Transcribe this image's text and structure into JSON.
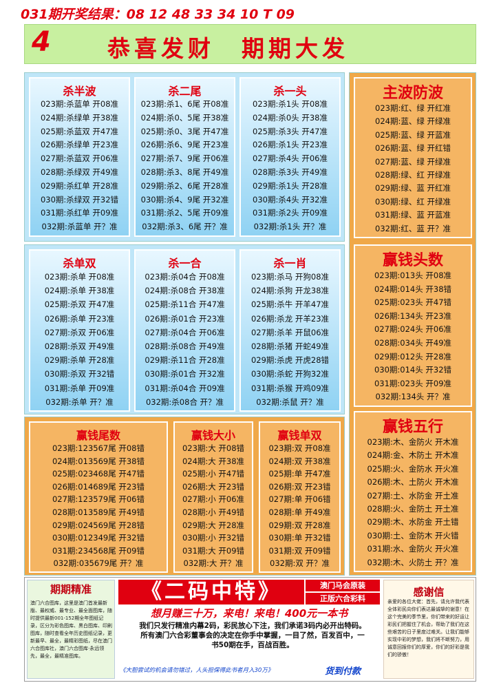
{
  "header": {
    "result": "031期开奖结果：08 12 48 33 34 10 T 09"
  },
  "banner": {
    "number": "4",
    "title": "恭喜发财　期期大发"
  },
  "panels": [
    {
      "title": "杀半波",
      "rows": [
        "023期:杀蓝单 开08准",
        "024期:杀绿单 开38准",
        "025期:杀蓝双 开47准",
        "026期:杀绿单 开23准",
        "027期:杀蓝双 开06准",
        "028期:杀绿双 开49准",
        "029期:杀红单 开28准",
        "030期:杀绿双 开32错",
        "031期:杀红单 开09准",
        "032期:杀蓝单 开？准"
      ]
    },
    {
      "title": "杀二尾",
      "rows": [
        "023期:杀1、6尾 开08准",
        "024期:杀0、5尾 开38准",
        "025期:杀0、3尾 开47准",
        "026期:杀6、9尾 开23准",
        "027期:杀7、9尾 开06准",
        "028期:杀3、8尾 开49准",
        "029期:杀2、6尾 开28准",
        "030期:杀4、9尾 开32准",
        "031期:杀2、5尾 开09准",
        "032期:杀3、6尾 开？准"
      ]
    },
    {
      "title": "杀一头",
      "rows": [
        "023期:杀1头 开08准",
        "024期:杀0头 开38准",
        "025期:杀3头 开47准",
        "026期:杀1头 开23准",
        "027期:杀4头 开06准",
        "028期:杀3头 开49准",
        "029期:杀1头 开28准",
        "030期:杀4头 开32准",
        "031期:杀2头 开09准",
        "032期:杀1头 开？准"
      ]
    },
    {
      "title": "杀单双",
      "rows": [
        "023期:杀单 开08准",
        "024期:杀单 开38准",
        "025期:杀双 开47准",
        "026期:杀单 开23准",
        "027期:杀双 开06准",
        "028期:杀双 开49准",
        "029期:杀单 开28准",
        "030期:杀双 开32错",
        "031期:杀单 开09准",
        "032期:杀单 开？准"
      ]
    },
    {
      "title": "杀一合",
      "rows": [
        "023期:杀04合 开08准",
        "024期:杀08合 开38准",
        "025期:杀11合 开47准",
        "026期:杀01合 开23准",
        "027期:杀04合 开06准",
        "028期:杀08合 开49准",
        "029期:杀11合 开28准",
        "030期:杀01合 开32准",
        "031期:杀04合 开09准",
        "032期:杀08合 开？准"
      ]
    },
    {
      "title": "杀一肖",
      "rows": [
        "023期:杀马 开狗08准",
        "024期:杀狗 开龙38准",
        "025期:杀牛 开羊47准",
        "026期:杀龙 开羊23准",
        "027期:杀羊 开鼠06准",
        "028期:杀猪 开蛇49准",
        "029期:杀虎 开虎28错",
        "030期:杀蛇 开狗32准",
        "031期:杀猴 开鸡09准",
        "032期:杀鼠 开？准"
      ]
    },
    {
      "title": "赢钱尾数",
      "rows": [
        "023期:123567尾 开08错",
        "024期:013569尾 开38错",
        "025期:023468尾 开47错",
        "026期:014689尾 开23错",
        "027期:123579尾 开06错",
        "028期:013589尾 开49错",
        "029期:024569尾 开28错",
        "030期:012349尾 开32错",
        "031期:234568尾 开09错",
        "032期:035679尾 开？准"
      ]
    },
    {
      "title": "赢钱大小",
      "rows": [
        "023期:大 开08错",
        "024期:大 开38准",
        "025期:小 开47错",
        "026期:大 开23错",
        "027期:小 开06准",
        "028期:小 开49错",
        "029期:大 开28准",
        "030期:小 开32错",
        "031期:大 开09错",
        "032期:大 开？准"
      ]
    },
    {
      "title": "赢钱单双",
      "rows": [
        "023期:双 开08准",
        "024期:双 开38准",
        "025期:单 开47准",
        "026期:双 开23错",
        "027期:单 开06错",
        "028期:单 开49准",
        "029期:双 开28准",
        "030期:单 开32错",
        "031期:双 开09错",
        "032期:双 开？准"
      ]
    },
    {
      "title": "主波防波",
      "rows": [
        "023期:红、绿 开红准",
        "024期:蓝、绿 开绿准",
        "025期:蓝、绿 开蓝准",
        "026期:蓝、绿 开红错",
        "027期:蓝、绿 开绿准",
        "028期:绿、红 开绿准",
        "029期:绿、蓝 开红准",
        "030期:绿、红 开绿准",
        "031期:绿、蓝 开蓝准",
        "032期:红、蓝 开？准"
      ]
    },
    {
      "title": "赢钱头数",
      "rows": [
        "023期:013头 开08准",
        "024期:014头 开38错",
        "025期:023头 开47错",
        "026期:134头 开23准",
        "027期:024头 开06准",
        "028期:034头 开49准",
        "029期:012头 开28准",
        "030期:014头 开32错",
        "031期:023头 开09准",
        "032期:134头 开？准"
      ]
    },
    {
      "title": "赢钱五行",
      "rows": [
        "023期:木、金防火 开木准",
        "024期:金、木防土 开木准",
        "025期:火、金防水 开火准",
        "026期:木、土防火 开木准",
        "027期:土、水防金 开土准",
        "028期:火、金防土 开土准",
        "029期:木、水防金 开土错",
        "030期:土、金防木 开火错",
        "031期:水、金防火 开火准",
        "032期:木、火防土 开？准"
      ]
    }
  ],
  "bottom": {
    "left_title": "期期精准",
    "left_text": "澳门六合图库，这里是澳门首发最新版、最权威、最专业、最全面图库，随时提供最新001-152期全年图纸记录，区分为彩色图库、黑白图库、印刷图库，随时查看全年历史图纸记录，更新最早、最全，最精彩图纸，尽在澳门六合图库社，澳门六合图库·永远领先，最全，最精准图库。",
    "center_title": "《二码中特》",
    "center_tag1": "澳门马会原装",
    "center_tag2": "正版六合彩料",
    "center_slogan": "想月赚三十万，来电！来电！400元一本书",
    "center_text": "我们只发行精准内幕2码，彩民放心下注，我们承诺3码内必开出特码。所有澳门六合彩董事会的决定在你手中掌握，一目了然，百发百中，一书50期在手，百战百胜。",
    "center_footer": "《大胆尝试的机会请勿错过，人头担保得此书者月入30万》",
    "center_cod": "货到付款",
    "right_title": "感谢信",
    "right_text": "亲爱的各位大佬：首先，请允许我代表全体彩民向你们表达最诚挚的谢意！在这个完美的季节里，你们带来的好运让彩民们把握住了机会，帮助了我们在这些艰苦的日子里度过难关。让我们能够实现中彩的梦想，我们将不断努力，用诚意回报你们的厚爱，你们的好彩是我们的骄傲！"
  }
}
